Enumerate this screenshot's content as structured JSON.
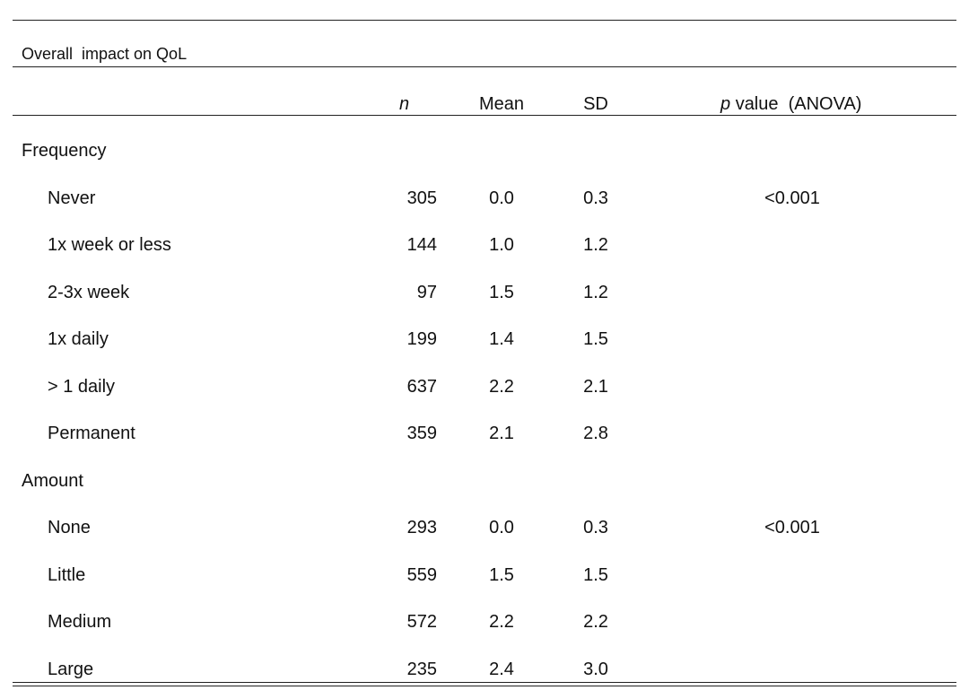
{
  "table": {
    "title": "Overall  impact on QoL",
    "header": {
      "n": "n",
      "mean": "Mean",
      "sd": "SD",
      "p_italic": "p",
      "p_rest": "value  (ANOVA)"
    },
    "groups": [
      {
        "label": "Frequency",
        "rows": [
          {
            "label": "Never",
            "n": "305",
            "mean": "0.0",
            "sd": "0.3",
            "p": "<0.001"
          },
          {
            "label": "1x week or less",
            "n": "144",
            "mean": "1.0",
            "sd": "1.2"
          },
          {
            "label": "2-3x week",
            "n": "97",
            "mean": "1.5",
            "sd": "1.2"
          },
          {
            "label": "1x daily",
            "n": "199",
            "mean": "1.4",
            "sd": "1.5"
          },
          {
            "label": "> 1 daily",
            "n": "637",
            "mean": "2.2",
            "sd": "2.1"
          },
          {
            "label": "Permanent",
            "n": "359",
            "mean": "2.1",
            "sd": "2.8"
          }
        ]
      },
      {
        "label": "Amount",
        "rows": [
          {
            "label": "None",
            "n": "293",
            "mean": "0.0",
            "sd": "0.3",
            "p": "<0.001"
          },
          {
            "label": "Little",
            "n": "559",
            "mean": "1.5",
            "sd": "1.5"
          },
          {
            "label": "Medium",
            "n": "572",
            "mean": "2.2",
            "sd": "2.2"
          },
          {
            "label": "Large",
            "n": "235",
            "mean": "2.4",
            "sd": "3.0"
          }
        ]
      }
    ]
  }
}
